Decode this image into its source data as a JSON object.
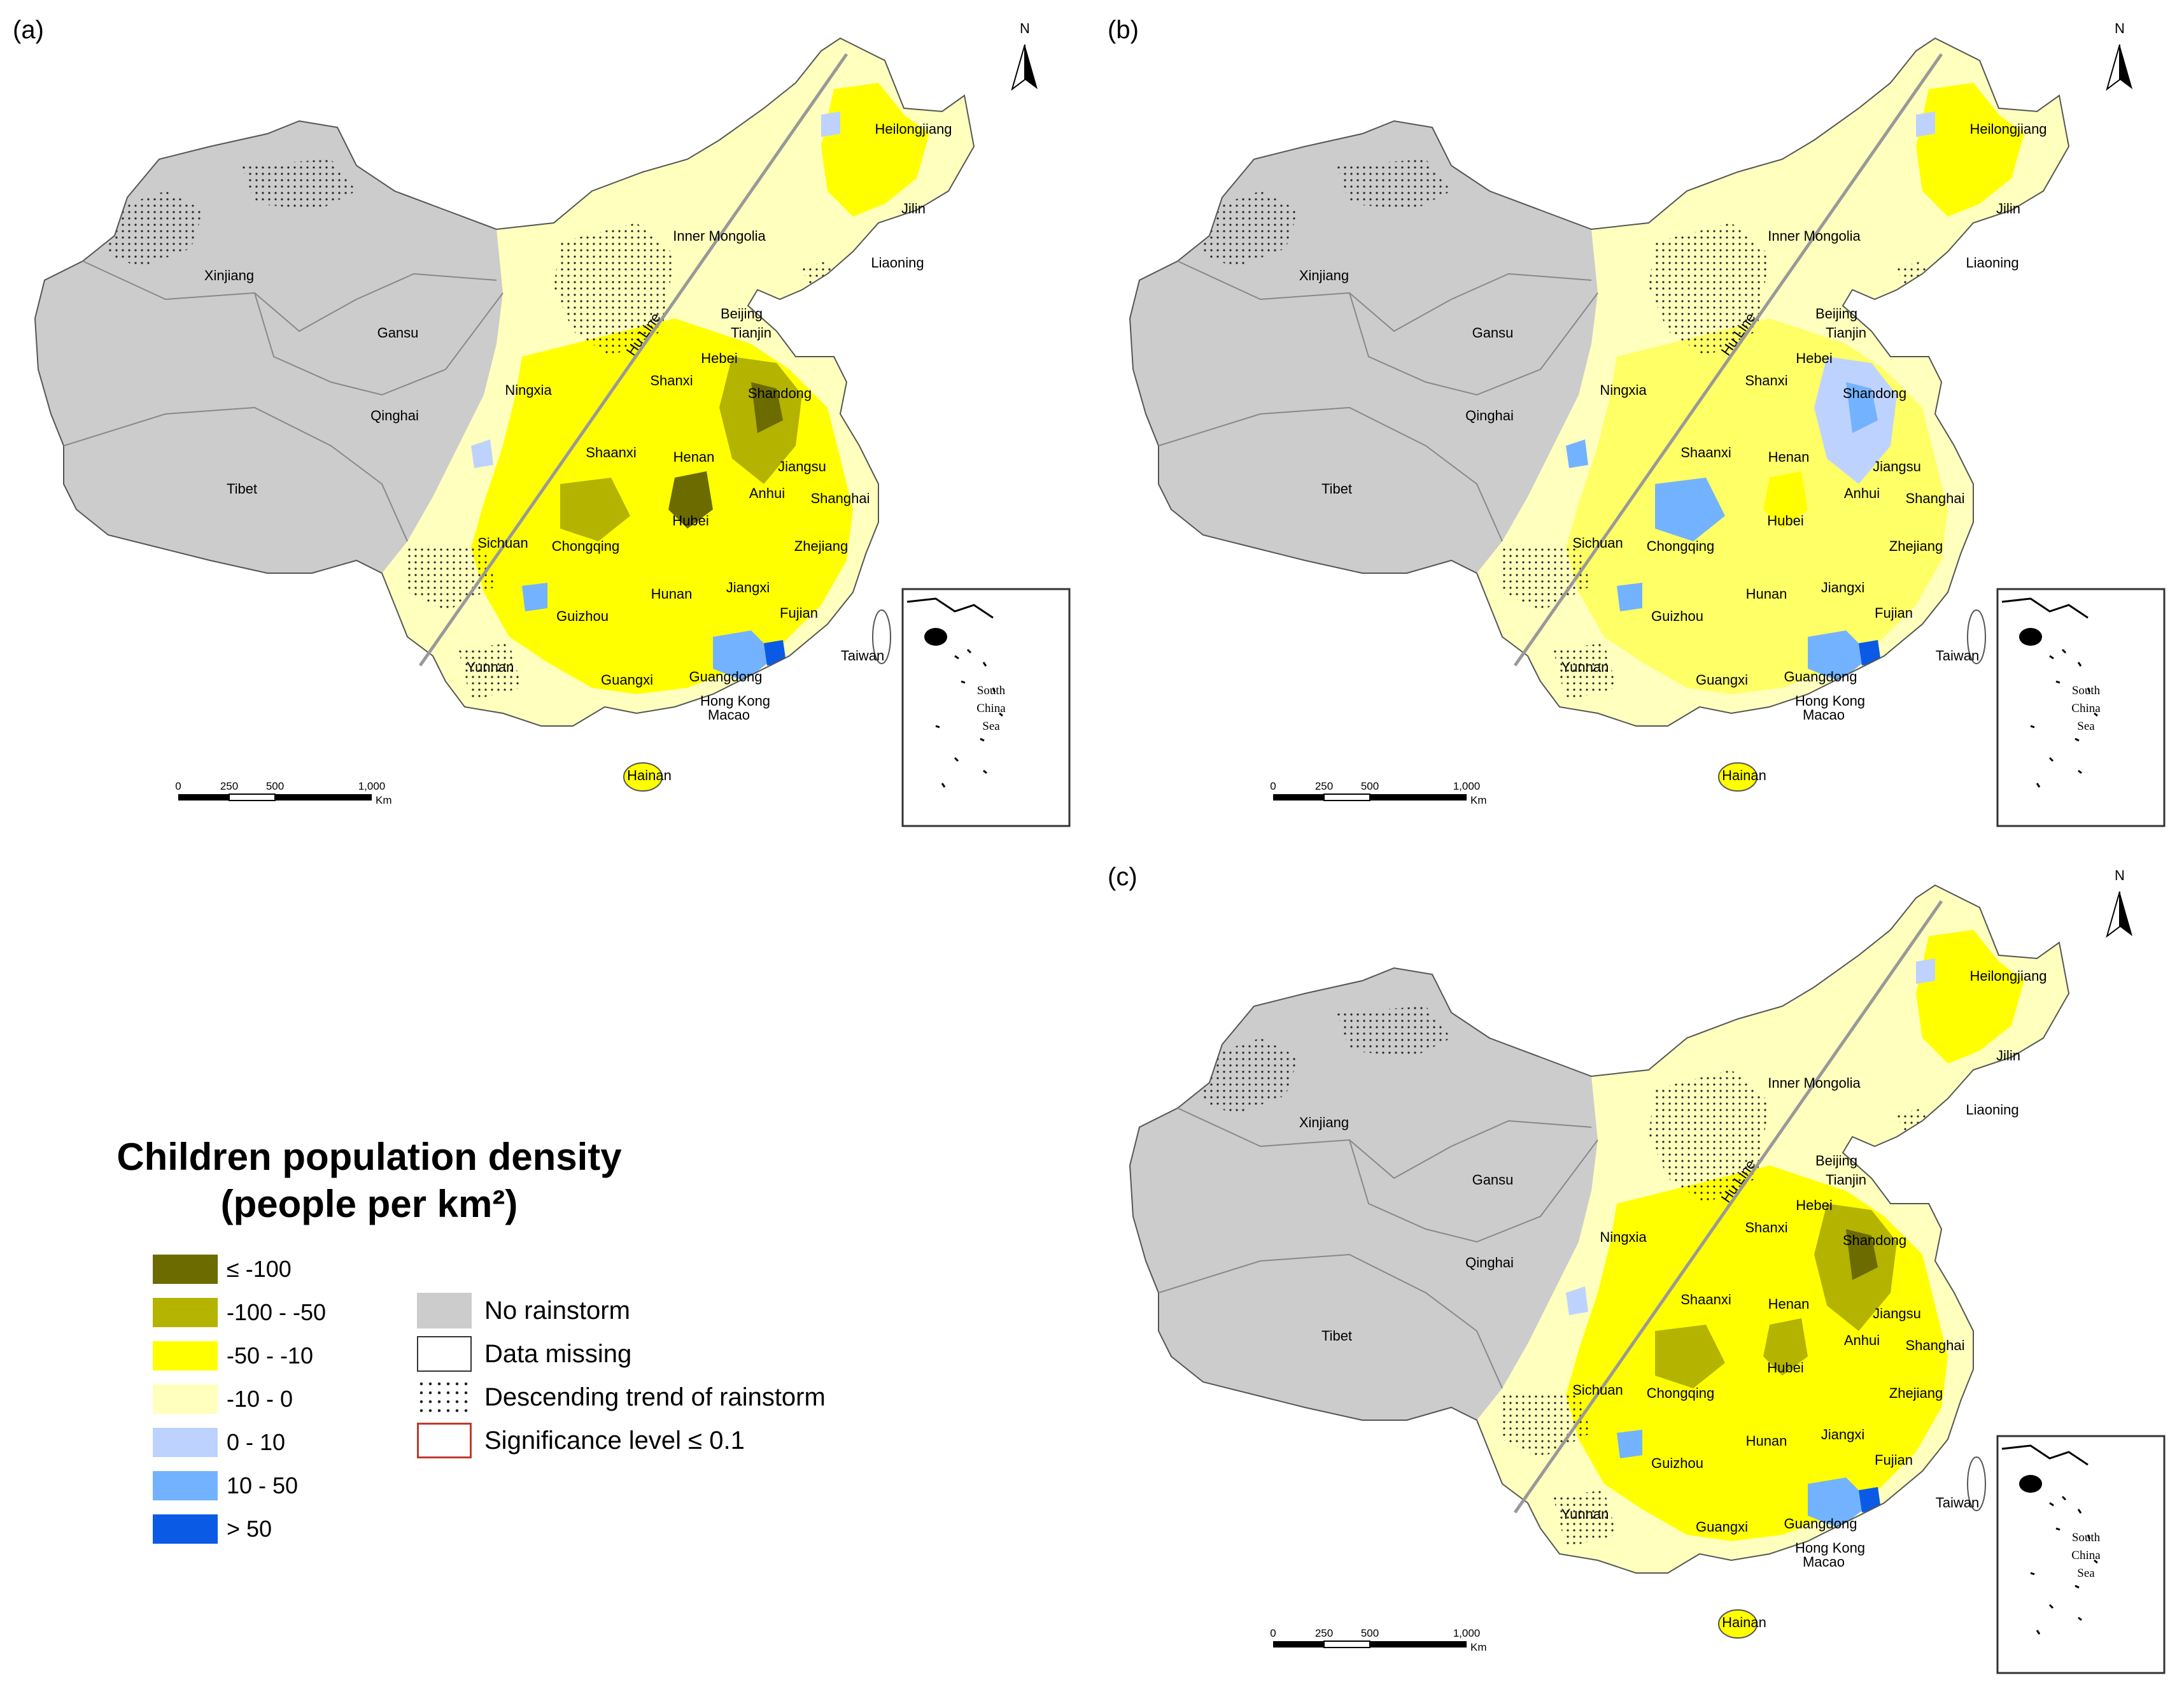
{
  "figure": {
    "panels": [
      {
        "id": "a",
        "label": "(a)"
      },
      {
        "id": "b",
        "label": "(b)"
      },
      {
        "id": "c",
        "label": "(c)"
      }
    ],
    "provinces": [
      "Heilongjiang",
      "Jilin",
      "Liaoning",
      "Inner Mongolia",
      "Xinjiang",
      "Gansu",
      "Qinghai",
      "Tibet",
      "Ningxia",
      "Beijing",
      "Tianjin",
      "Hebei",
      "Shanxi",
      "Shandong",
      "Shaanxi",
      "Henan",
      "Jiangsu",
      "Anhui",
      "Shanghai",
      "Sichuan",
      "Chongqing",
      "Hubei",
      "Zhejiang",
      "Hunan",
      "Jiangxi",
      "Fujian",
      "Guizhou",
      "Yunnan",
      "Guangxi",
      "Guangdong",
      "Hong Kong",
      "Macao",
      "Taiwan",
      "Hainan"
    ],
    "hu_line_label": "Hu Line",
    "north_label": "N",
    "scale": {
      "ticks": [
        "0",
        "250",
        "500",
        "1,000"
      ],
      "unit": "Km"
    },
    "inset": {
      "line1": "South",
      "line2": "China",
      "line3": "Sea"
    }
  },
  "legend": {
    "title_line1": "Children population density",
    "title_line2": "(people per km²)",
    "classes": [
      {
        "label": "≤ -100",
        "color": "#6b6b00"
      },
      {
        "label": "-100 - -50",
        "color": "#b3b300"
      },
      {
        "label": "-50 - -10",
        "color": "#ffff00"
      },
      {
        "label": "-10 - 0",
        "color": "#ffffbe"
      },
      {
        "label": "0 - 10",
        "color": "#bed2ff"
      },
      {
        "label": "10 - 50",
        "color": "#73b2ff"
      },
      {
        "label": "> 50",
        "color": "#0a5ae6"
      }
    ],
    "symbols": [
      {
        "label": "No rainstorm",
        "kind": "gray-fill",
        "color": "#cccccc"
      },
      {
        "label": "Data missing",
        "kind": "outline"
      },
      {
        "label": "Descending trend of rainstorm",
        "kind": "dots"
      },
      {
        "label": "Significance level  ≤  0.1",
        "kind": "red-outline",
        "color": "#c0392b"
      }
    ]
  }
}
